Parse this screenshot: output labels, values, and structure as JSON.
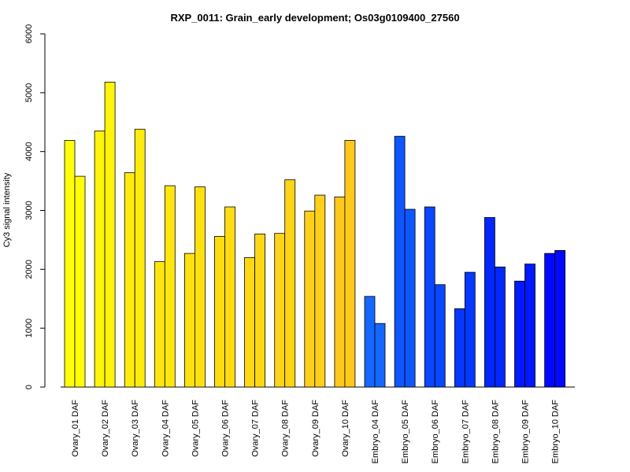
{
  "chart_data": {
    "type": "bar",
    "title": "RXP_0011: Grain_early development; Os03g0109400_27560",
    "ylabel": "Cy3 signal intensity",
    "xlabel": "",
    "ylim": [
      0,
      6000
    ],
    "yticks": [
      "0",
      "1000",
      "2000",
      "3000",
      "4000",
      "5000",
      "6000"
    ],
    "grid": false,
    "legend": "none",
    "categories": [
      "Ovary_01 DAF",
      "Ovary_02 DAF",
      "Ovary_03 DAF",
      "Ovary_04 DAF",
      "Ovary_05 DAF",
      "Ovary_06 DAF",
      "Ovary_07 DAF",
      "Ovary_08 DAF",
      "Ovary_09 DAF",
      "Ovary_10 DAF",
      "Embryo_04 DAF",
      "Embryo_05 DAF",
      "Embryo_06 DAF",
      "Embryo_07 DAF",
      "Embryo_08 DAF",
      "Embryo_09 DAF",
      "Embryo_10 DAF"
    ],
    "series": [
      {
        "values": [
          4190,
          4350,
          3640,
          2130,
          2270,
          2560,
          2200,
          2610,
          2990,
          3230,
          1540,
          4260,
          3060,
          1330,
          2880,
          1800,
          2270
        ]
      },
      {
        "values": [
          3580,
          5180,
          4380,
          3420,
          3400,
          3060,
          2600,
          3520,
          3260,
          4190,
          1080,
          3020,
          1740,
          1950,
          2040,
          2090,
          2320
        ]
      }
    ],
    "colors": [
      "#ffff0c",
      "#fff40c",
      "#ffec0e",
      "#ffe60e",
      "#ffe10f",
      "#ffdc12",
      "#fed815",
      "#fed418",
      "#fecf1b",
      "#fec81c",
      "#1567ff",
      "#0f56ff",
      "#0a47ff",
      "#0638ff",
      "#0327ff",
      "#0218ff",
      "#0109ff"
    ]
  }
}
